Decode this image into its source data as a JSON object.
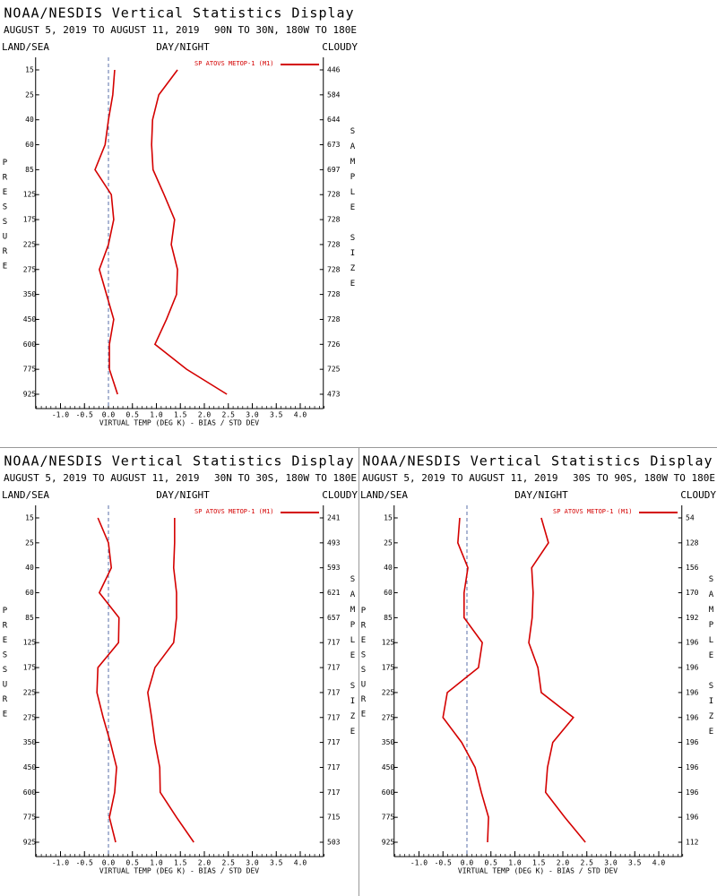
{
  "chart_data": [
    {
      "type": "line",
      "title": "NOAA/NESDIS Vertical Statistics Display",
      "subtitle": "AUGUST 5, 2019 TO AUGUST 11, 2019",
      "region": "90N TO 30N, 180W TO 180E",
      "land_sea": "LAND/SEA",
      "day_night": "DAY/NIGHT",
      "cloudy": "CLOUDY",
      "y_label": "PRESSURE",
      "y2_label": "SAMPLE SIZE",
      "x_label": "VIRTUAL TEMP (DEG K) - BIAS / STD DEV",
      "categories": [
        "15",
        "25",
        "40",
        "60",
        "85",
        "125",
        "175",
        "225",
        "275",
        "350",
        "450",
        "600",
        "775",
        "925"
      ],
      "series": [
        {
          "name": "SP ATOVS METOP-1 (M1)",
          "color": "#d40000",
          "bias": [
            0.13,
            0.09,
            0.0,
            -0.07,
            -0.28,
            0.06,
            0.11,
            0.0,
            -0.19,
            -0.04,
            0.11,
            0.02,
            0.02,
            0.19
          ],
          "std_dev": [
            1.44,
            1.05,
            0.92,
            0.9,
            0.93,
            1.16,
            1.38,
            1.31,
            1.44,
            1.42,
            1.21,
            0.97,
            1.63,
            2.47
          ]
        }
      ],
      "sample_size": [
        446,
        584,
        644,
        673,
        697,
        728,
        728,
        728,
        728,
        728,
        728,
        726,
        725,
        473
      ],
      "xlim": [
        -1.5,
        4.5
      ],
      "xticks": [
        {
          "value": -1,
          "label": "-1.0"
        },
        -0.5,
        {
          "value": 0,
          "label": "0.0"
        },
        0.5,
        {
          "value": 1,
          "label": "1.0"
        },
        1.5,
        {
          "value": 2,
          "label": "2.0"
        },
        2.5,
        {
          "value": 3,
          "label": "3.0"
        },
        3.5,
        {
          "value": 4,
          "label": "4.0"
        }
      ],
      "zero_line": true
    },
    {
      "type": "line",
      "title": "NOAA/NESDIS Vertical Statistics Display",
      "subtitle": "AUGUST 5, 2019 TO AUGUST 11, 2019",
      "region": "30N TO 30S, 180W TO 180E",
      "land_sea": "LAND/SEA",
      "day_night": "DAY/NIGHT",
      "cloudy": "CLOUDY",
      "y_label": "PRESSURE",
      "y2_label": "SAMPLE SIZE",
      "x_label": "VIRTUAL TEMP (DEG K) - BIAS / STD DEV",
      "categories": [
        "15",
        "25",
        "40",
        "60",
        "85",
        "125",
        "175",
        "225",
        "275",
        "350",
        "450",
        "600",
        "775",
        "925"
      ],
      "series": [
        {
          "name": "SP ATOVS METOP-1 (M1)",
          "color": "#d40000",
          "bias": [
            -0.22,
            0.0,
            0.06,
            -0.19,
            0.22,
            0.21,
            -0.22,
            -0.24,
            -0.11,
            0.04,
            0.17,
            0.13,
            0.02,
            0.15
          ],
          "std_dev": [
            1.38,
            1.38,
            1.36,
            1.42,
            1.42,
            1.36,
            0.97,
            0.82,
            0.9,
            0.97,
            1.07,
            1.08,
            1.42,
            1.78
          ]
        }
      ],
      "sample_size": [
        241,
        493,
        593,
        621,
        657,
        717,
        717,
        717,
        717,
        717,
        717,
        717,
        715,
        503
      ],
      "xlim": [
        -1.5,
        4.5
      ],
      "xticks": [
        {
          "value": -1,
          "label": "-1.0"
        },
        -0.5,
        {
          "value": 0,
          "label": "0.0"
        },
        0.5,
        {
          "value": 1,
          "label": "1.0"
        },
        1.5,
        {
          "value": 2,
          "label": "2.0"
        },
        2.5,
        {
          "value": 3,
          "label": "3.0"
        },
        3.5,
        {
          "value": 4,
          "label": "4.0"
        }
      ],
      "zero_line": true
    },
    {
      "type": "line",
      "title": "NOAA/NESDIS Vertical Statistics Display",
      "subtitle": "AUGUST 5, 2019 TO AUGUST 11, 2019",
      "region": "30S TO 90S, 180W TO 180E",
      "land_sea": "LAND/SEA",
      "day_night": "DAY/NIGHT",
      "cloudy": "CLOUDY",
      "y_label": "PRESSURE",
      "y2_label": "SAMPLE SIZE",
      "x_label": "VIRTUAL TEMP (DEG K) - BIAS / STD DEV",
      "categories": [
        "15",
        "25",
        "40",
        "60",
        "85",
        "125",
        "175",
        "225",
        "275",
        "350",
        "450",
        "600",
        "775",
        "925"
      ],
      "series": [
        {
          "name": "SP ATOVS METOP-1 (M1)",
          "color": "#d40000",
          "bias": [
            -0.15,
            -0.19,
            0.02,
            -0.06,
            -0.06,
            0.32,
            0.24,
            -0.41,
            -0.5,
            -0.11,
            0.17,
            0.3,
            0.45,
            0.43
          ],
          "std_dev": [
            1.55,
            1.7,
            1.35,
            1.38,
            1.36,
            1.29,
            1.48,
            1.55,
            2.22,
            1.79,
            1.68,
            1.64,
            2.04,
            2.47
          ]
        }
      ],
      "sample_size": [
        54,
        128,
        156,
        170,
        192,
        196,
        196,
        196,
        196,
        196,
        196,
        196,
        196,
        112
      ],
      "xlim": [
        -1.5,
        4.5
      ],
      "xticks": [
        {
          "value": -1,
          "label": "-1.0"
        },
        -0.5,
        {
          "value": 0,
          "label": "0.0"
        },
        0.5,
        {
          "value": 1,
          "label": "1.0"
        },
        1.5,
        {
          "value": 2,
          "label": "2.0"
        },
        2.5,
        {
          "value": 3,
          "label": "3.0"
        },
        3.5,
        {
          "value": 4,
          "label": "4.0"
        }
      ],
      "zero_line": true
    }
  ]
}
